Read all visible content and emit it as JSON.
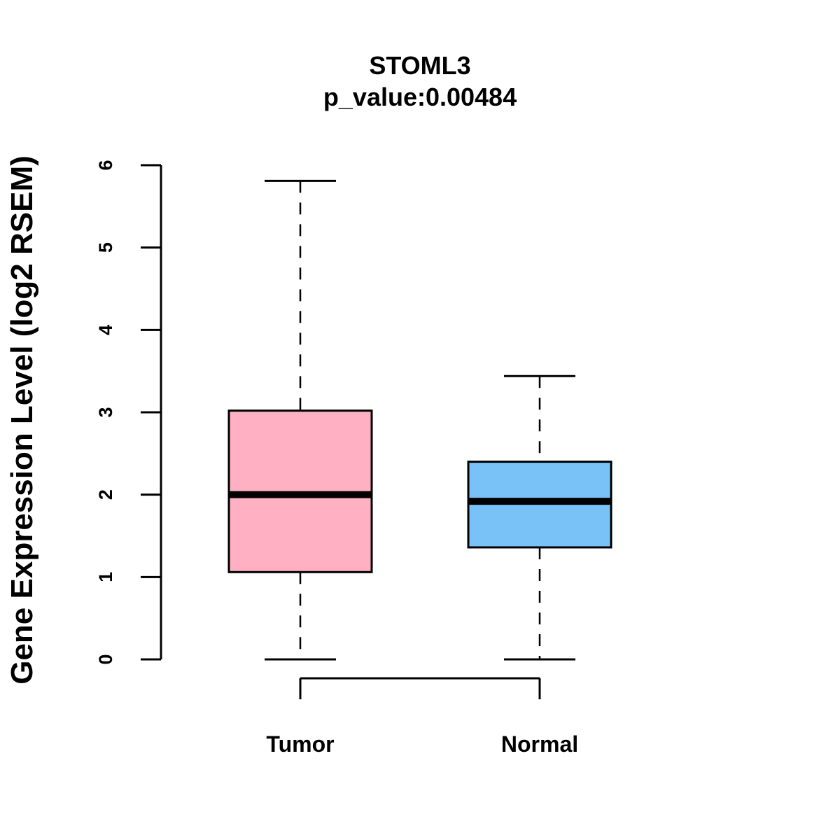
{
  "chart_data": {
    "type": "boxplot",
    "title": "STOML3",
    "subtitle": "p_value:0.00484",
    "xlabel": "",
    "ylabel": "Gene Expression Level (log2 RSEM)",
    "ylim": [
      0,
      6
    ],
    "yticks": [
      0,
      1,
      2,
      3,
      4,
      5,
      6
    ],
    "grid": false,
    "categories": [
      "Tumor",
      "Normal"
    ],
    "series": [
      {
        "name": "Tumor",
        "min": 0,
        "q1": 1.06,
        "median": 2.0,
        "q3": 3.02,
        "max": 5.81,
        "color": "#FFB1C3"
      },
      {
        "name": "Normal",
        "min": 0,
        "q1": 1.36,
        "median": 1.92,
        "q3": 2.4,
        "max": 3.44,
        "color": "#78C2F8"
      }
    ],
    "comparison_bracket": [
      "Tumor",
      "Normal"
    ]
  }
}
